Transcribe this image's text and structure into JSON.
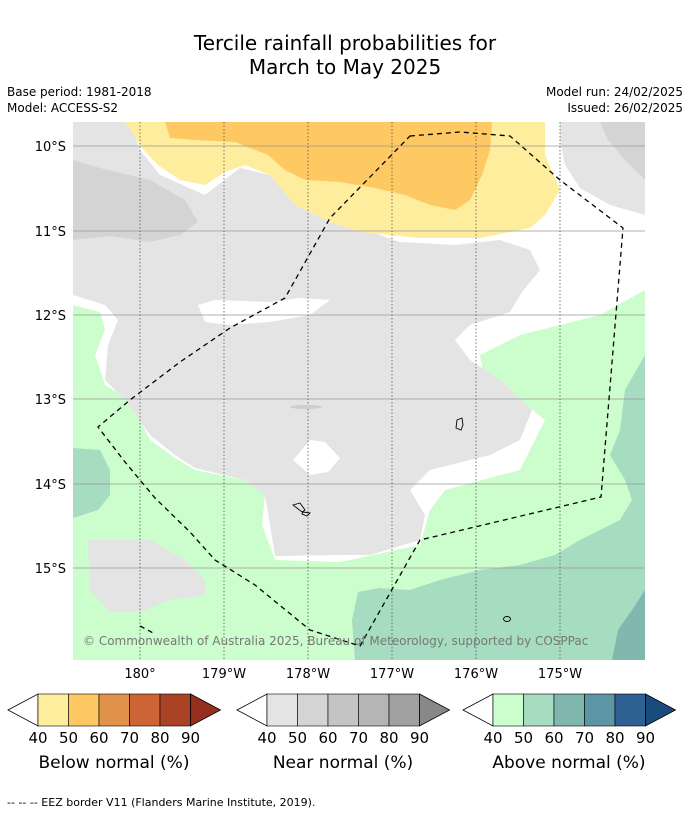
{
  "title": {
    "line1": "Tercile rainfall probabilities for",
    "line2": "March to May 2025"
  },
  "meta": {
    "base_period": "Base period: 1981-2018",
    "model": "Model: ACCESS-S2",
    "model_run": "Model run: 24/02/2025",
    "issued": "Issued: 26/02/2025"
  },
  "map": {
    "lat_labels": [
      "10°S",
      "11°S",
      "12°S",
      "13°S",
      "14°S",
      "15°S"
    ],
    "lon_labels": [
      "180°",
      "179°W",
      "178°W",
      "177°W",
      "176°W",
      "175°W"
    ],
    "copyright": "© Commonwealth of Australia 2025, Bureau of Meteorology, supported by COSPPac"
  },
  "colors": {
    "below": [
      "#ffed9e",
      "#fec862",
      "#e0924a",
      "#cc6436",
      "#aa4326",
      "#952f1e"
    ],
    "near": [
      "#e4e4e4",
      "#d4d4d4",
      "#c4c4c4",
      "#b5b5b5",
      "#a0a0a0",
      "#888888"
    ],
    "above": [
      "#ccfdcc",
      "#a6dcbf",
      "#80b8b0",
      "#5c96a4",
      "#2f6195",
      "#1a4b7e"
    ]
  },
  "colorbars": [
    {
      "label": "Below normal (%)",
      "ticks": [
        "40",
        "50",
        "60",
        "70",
        "80",
        "90"
      ]
    },
    {
      "label": "Near normal (%)",
      "ticks": [
        "40",
        "50",
        "60",
        "70",
        "80",
        "90"
      ]
    },
    {
      "label": "Above normal (%)",
      "ticks": [
        "40",
        "50",
        "60",
        "70",
        "80",
        "90"
      ]
    }
  ],
  "footer": "--  --  -- EEZ border V11 (Flanders Marine Institute, 2019)."
}
